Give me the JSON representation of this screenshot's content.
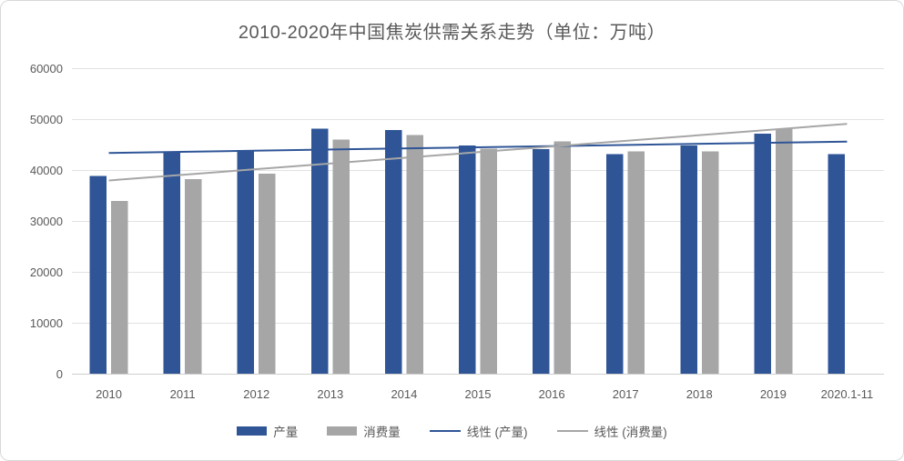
{
  "chart": {
    "title": "2010-2020年中国焦炭供需关系走势（单位：万吨）"
  },
  "chart_data": {
    "type": "bar",
    "title": "2010-2020年中国焦炭供需关系走势（单位：万吨）",
    "categories": [
      "2010",
      "2011",
      "2012",
      "2013",
      "2014",
      "2015",
      "2016",
      "2017",
      "2018",
      "2019",
      "2020.1-11"
    ],
    "series": [
      {
        "name": "产量",
        "key": "production",
        "type": "bar",
        "color": "#2F5597",
        "values": [
          38800,
          43700,
          43700,
          48100,
          47900,
          44800,
          44100,
          43100,
          44800,
          47100,
          43100
        ]
      },
      {
        "name": "消费量",
        "key": "consumption",
        "type": "bar",
        "color": "#A6A6A6",
        "values": [
          33900,
          38200,
          39300,
          46000,
          46900,
          44200,
          45600,
          43700,
          43700,
          48000,
          null
        ]
      }
    ],
    "trendlines": [
      {
        "name": "线性 (产量)",
        "key": "trend-production",
        "source_series": 0,
        "color": "#2F5597"
      },
      {
        "name": "线性 (消费量)",
        "key": "trend-consumption",
        "source_series": 1,
        "color": "#A6A6A6"
      }
    ],
    "ylim": [
      0,
      60000
    ],
    "ytick_step": 10000,
    "ytick_labels": [
      "0",
      "10000",
      "20000",
      "30000",
      "40000",
      "50000",
      "60000"
    ],
    "xlabel": "",
    "ylabel": "",
    "grid": true,
    "legend_position": "bottom"
  },
  "legend": {
    "items": [
      {
        "label": "产量",
        "swatch": "rect",
        "color": "#2F5597"
      },
      {
        "label": "消费量",
        "swatch": "rect",
        "color": "#A6A6A6"
      },
      {
        "label": "线性 (产量)",
        "swatch": "line",
        "color": "#2F5597"
      },
      {
        "label": "线性 (消费量)",
        "swatch": "line",
        "color": "#A6A6A6"
      }
    ]
  },
  "colors": {
    "bar_blue": "#2F5597",
    "bar_gray": "#A6A6A6",
    "gridline": "#E2E2E2",
    "axis_line": "#CFCFCF",
    "label_text": "#595959",
    "frame_border": "#D8D8D8"
  }
}
